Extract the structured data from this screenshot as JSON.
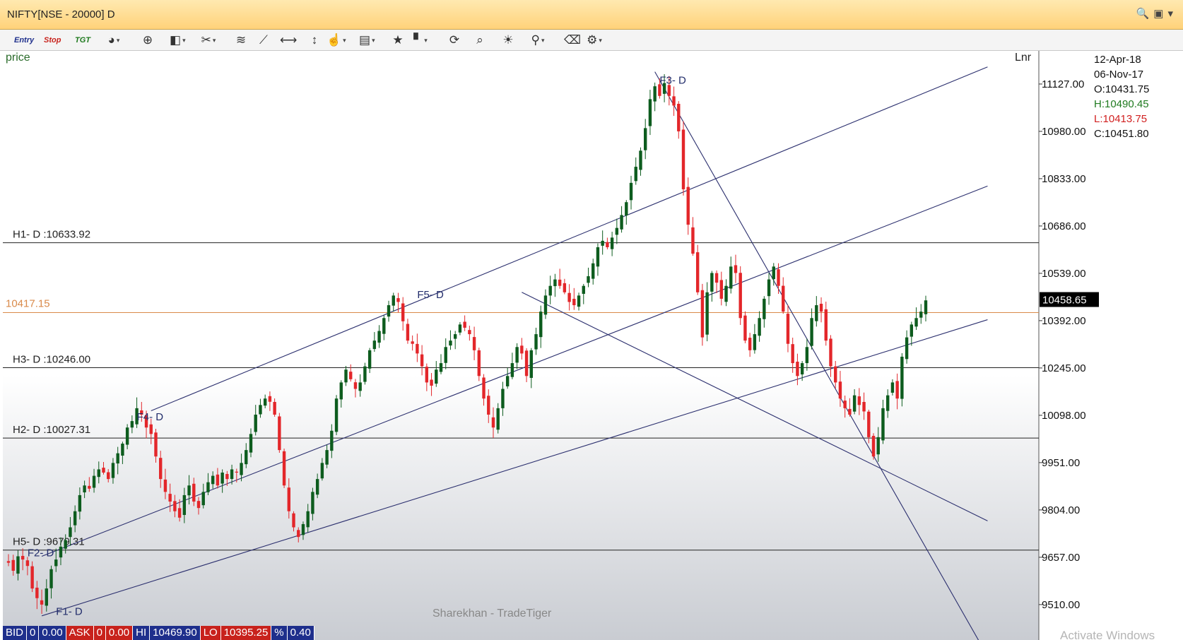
{
  "window": {
    "title": "NIFTY[NSE - 20000] D"
  },
  "toolbar": {
    "entry_label": "Entry",
    "stop_label": "Stop",
    "tgt_label": "TGT"
  },
  "chart": {
    "panel_label": "price",
    "scale_label": "Lnr",
    "watermark": "Sharekhan - TradeTiger",
    "crosshair_price_label": "10417.15",
    "last_price_label": "10458.65",
    "lines": [
      {
        "label": "H1- D :10633.92",
        "price": 10633.92
      },
      {
        "label": "H3- D :10246.00",
        "price": 10246.0
      },
      {
        "label": "H2- D :10027.31",
        "price": 10027.31
      },
      {
        "label": "H5- D :9679.31",
        "price": 9679.31
      }
    ],
    "points": [
      "F1- D",
      "F2- D",
      "F3- D",
      "F4- D",
      "F5- D"
    ],
    "y_ticks": [
      "11127.00",
      "10980.00",
      "10833.00",
      "10686.00",
      "10539.00",
      "10392.00",
      "10245.00",
      "10098.00",
      "9951.00",
      "9804.00",
      "9657.00",
      "9510.00"
    ],
    "colors": {
      "up": "#0d5c1e",
      "down": "#e3262a",
      "line": "#2b2f6e",
      "crosshair": "#d98a4a"
    }
  },
  "chart_data": {
    "type": "candlestick",
    "y_range": [
      9400,
      11230
    ],
    "y_ticks": [
      11127,
      10980,
      10833,
      10686,
      10539,
      10392,
      10245,
      10098,
      9951,
      9804,
      9657,
      9510
    ],
    "horizontal_levels": [
      10633.92,
      10246.0,
      10027.31,
      9679.31
    ],
    "crosshair_price": 10417.15,
    "last_price": 10458.65,
    "closes": [
      9640,
      9615,
      9660,
      9650,
      9630,
      9560,
      9530,
      9510,
      9560,
      9620,
      9650,
      9690,
      9710,
      9750,
      9800,
      9850,
      9880,
      9870,
      9910,
      9930,
      9920,
      9900,
      9950,
      9980,
      10010,
      10060,
      10080,
      10120,
      10100,
      10060,
      10040,
      9970,
      9900,
      9860,
      9830,
      9800,
      9780,
      9850,
      9880,
      9830,
      9810,
      9860,
      9890,
      9910,
      9880,
      9920,
      9900,
      9930,
      9920,
      9950,
      9990,
      10040,
      10100,
      10130,
      10150,
      10140,
      10100,
      9990,
      9880,
      9800,
      9750,
      9720,
      9760,
      9800,
      9860,
      9900,
      9950,
      9990,
      10050,
      10150,
      10200,
      10240,
      10210,
      10180,
      10200,
      10250,
      10300,
      10330,
      10360,
      10400,
      10440,
      10470,
      10450,
      10390,
      10330,
      10320,
      10290,
      10250,
      10200,
      10190,
      10240,
      10260,
      10310,
      10330,
      10350,
      10380,
      10370,
      10350,
      10300,
      10220,
      10150,
      10100,
      10060,
      10120,
      10180,
      10220,
      10260,
      10310,
      10290,
      10220,
      10300,
      10350,
      10420,
      10470,
      10500,
      10520,
      10500,
      10480,
      10450,
      10440,
      10470,
      10500,
      10530,
      10570,
      10620,
      10640,
      10620,
      10650,
      10680,
      10720,
      10760,
      10820,
      10870,
      10920,
      10990,
      11080,
      11120,
      11090,
      11130,
      11090,
      11060,
      10980,
      10800,
      10690,
      10600,
      10480,
      10340,
      10480,
      10540,
      10510,
      10460,
      10500,
      10560,
      10540,
      10400,
      10330,
      10300,
      10350,
      10400,
      10460,
      10520,
      10560,
      10500,
      10420,
      10320,
      10260,
      10220,
      10260,
      10310,
      10400,
      10440,
      10420,
      10330,
      10250,
      10200,
      10150,
      10120,
      10100,
      10160,
      10130,
      10110,
      10030,
      9970,
      10030,
      10120,
      10160,
      10200,
      10150,
      10280,
      10340,
      10380,
      10400,
      10420,
      10455
    ]
  }
}
